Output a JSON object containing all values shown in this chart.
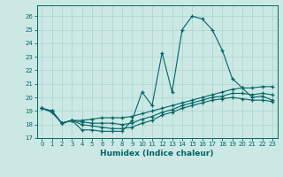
{
  "xlabel": "Humidex (Indice chaleur)",
  "ylabel": "",
  "background_color": "#cce8e4",
  "grid_color": "#aad4cc",
  "line_color": "#006666",
  "xlim": [
    -0.5,
    23.5
  ],
  "ylim": [
    17,
    26.8
  ],
  "yticks": [
    17,
    18,
    19,
    20,
    21,
    22,
    23,
    24,
    25,
    26
  ],
  "xticks": [
    0,
    1,
    2,
    3,
    4,
    5,
    6,
    7,
    8,
    9,
    10,
    11,
    12,
    13,
    14,
    15,
    16,
    17,
    18,
    19,
    20,
    21,
    22,
    23
  ],
  "series": [
    [
      19.2,
      18.9,
      18.1,
      18.3,
      17.6,
      17.6,
      17.5,
      17.5,
      17.5,
      18.3,
      20.4,
      19.4,
      23.3,
      20.4,
      25.0,
      26.0,
      25.8,
      25.0,
      23.5,
      21.4,
      20.7,
      20.0,
      20.1,
      19.8
    ],
    [
      19.2,
      19.0,
      18.1,
      18.3,
      18.3,
      18.4,
      18.5,
      18.5,
      18.5,
      18.6,
      18.8,
      19.0,
      19.2,
      19.4,
      19.6,
      19.8,
      20.0,
      20.2,
      20.4,
      20.6,
      20.7,
      20.7,
      20.8,
      20.8
    ],
    [
      19.2,
      19.0,
      18.1,
      18.3,
      18.0,
      17.9,
      17.8,
      17.7,
      17.7,
      17.8,
      18.1,
      18.3,
      18.7,
      18.9,
      19.2,
      19.4,
      19.6,
      19.8,
      19.9,
      20.0,
      19.9,
      19.8,
      19.8,
      19.7
    ],
    [
      19.2,
      19.0,
      18.1,
      18.3,
      18.2,
      18.1,
      18.1,
      18.1,
      18.0,
      18.1,
      18.4,
      18.6,
      18.9,
      19.1,
      19.4,
      19.6,
      19.8,
      20.0,
      20.1,
      20.3,
      20.3,
      20.2,
      20.3,
      20.2
    ]
  ]
}
